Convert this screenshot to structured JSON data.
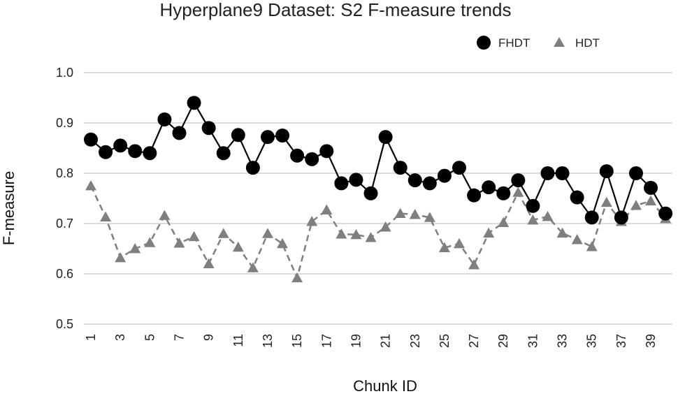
{
  "chart_data": {
    "type": "line",
    "title": "Hyperplane9 Dataset: S2 F-measure trends",
    "xlabel": "Chunk ID",
    "ylabel": "F-measure",
    "ylim": [
      0.5,
      1.0
    ],
    "yticks": [
      "0.5",
      "0.6",
      "0.7",
      "0.8",
      "0.9",
      "1.0"
    ],
    "xtick_labels": [
      "1",
      "3",
      "5",
      "7",
      "9",
      "11",
      "13",
      "15",
      "17",
      "19",
      "21",
      "23",
      "25",
      "27",
      "29",
      "31",
      "33",
      "35",
      "37",
      "39"
    ],
    "grid": true,
    "legend_position": "top-right",
    "x": [
      1,
      2,
      3,
      4,
      5,
      6,
      7,
      8,
      9,
      10,
      11,
      12,
      13,
      14,
      15,
      16,
      17,
      18,
      19,
      20,
      21,
      22,
      23,
      24,
      25,
      26,
      27,
      28,
      29,
      30,
      31,
      32,
      33,
      34,
      35,
      36,
      37,
      38,
      39,
      40
    ],
    "series": [
      {
        "name": "FHDT",
        "marker": "circle",
        "line_style": "solid",
        "color": "#000000",
        "values": [
          0.867,
          0.842,
          0.855,
          0.844,
          0.84,
          0.907,
          0.88,
          0.94,
          0.89,
          0.84,
          0.876,
          0.811,
          0.872,
          0.875,
          0.835,
          0.828,
          0.844,
          0.78,
          0.787,
          0.76,
          0.872,
          0.811,
          0.786,
          0.78,
          0.795,
          0.811,
          0.756,
          0.772,
          0.76,
          0.786,
          0.735,
          0.8,
          0.8,
          0.752,
          0.712,
          0.804,
          0.712,
          0.8,
          0.771,
          0.72
        ]
      },
      {
        "name": "HDT",
        "marker": "triangle",
        "line_style": "dashed",
        "color": "#7f7f7f",
        "values": [
          0.775,
          0.713,
          0.632,
          0.65,
          0.662,
          0.716,
          0.661,
          0.674,
          0.62,
          0.68,
          0.653,
          0.612,
          0.68,
          0.66,
          0.592,
          0.704,
          0.727,
          0.679,
          0.678,
          0.672,
          0.693,
          0.72,
          0.718,
          0.712,
          0.652,
          0.66,
          0.618,
          0.681,
          0.702,
          0.762,
          0.707,
          0.714,
          0.681,
          0.668,
          0.654,
          0.742,
          0.704,
          0.736,
          0.745,
          0.71
        ]
      }
    ]
  }
}
